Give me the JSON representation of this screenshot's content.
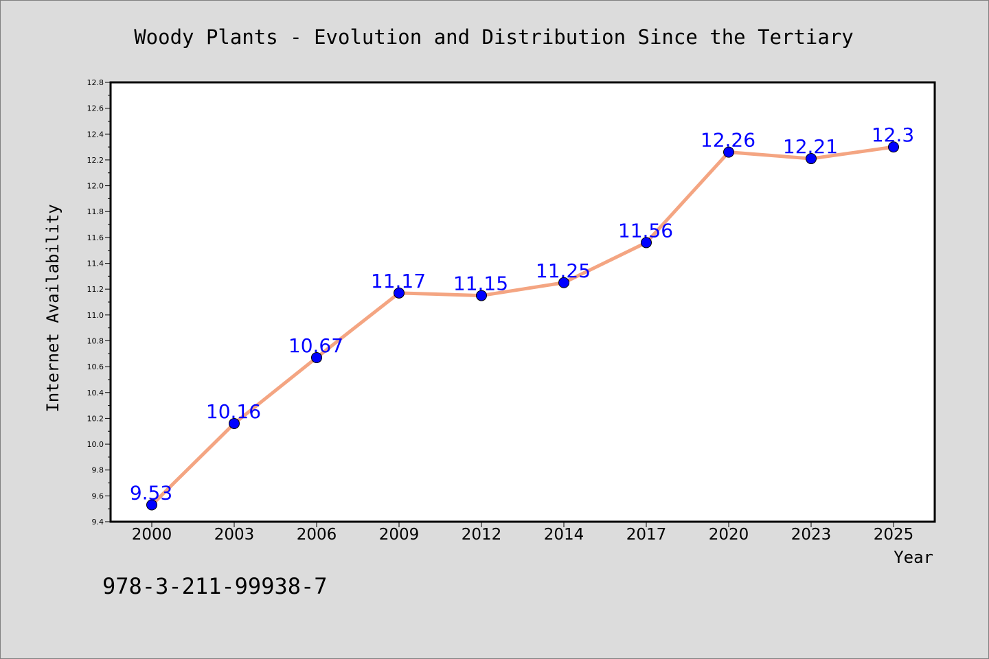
{
  "chart_data": {
    "type": "line",
    "title": "Woody Plants - Evolution and Distribution Since the Tertiary",
    "xlabel": "Year",
    "ylabel": "Internet Availability",
    "categories": [
      "2000",
      "2003",
      "2006",
      "2009",
      "2012",
      "2014",
      "2017",
      "2020",
      "2023",
      "2025"
    ],
    "series": [
      {
        "values": [
          9.53,
          10.16,
          10.67,
          11.17,
          11.15,
          11.25,
          11.56,
          12.26,
          12.21,
          12.3
        ],
        "labels": [
          "9.53",
          "10.16",
          "10.67",
          "11.17",
          "11.15",
          "11.25",
          "11.56",
          "12.26",
          "12.21",
          "12.3"
        ],
        "line_color": "#f4a582",
        "marker_color": "#0000ff",
        "label_color": "#0000ff"
      }
    ],
    "ylim": [
      9.4,
      12.8
    ],
    "yticks": [
      "9.4",
      "9.6",
      "9.8",
      "10.0",
      "10.2",
      "10.4",
      "10.6",
      "10.8",
      "11.0",
      "11.2",
      "11.4",
      "11.6",
      "11.8",
      "12.0",
      "12.2",
      "12.4",
      "12.6",
      "12.8"
    ],
    "grid": false,
    "legend": "none"
  },
  "footer_text": "978-3-211-99938-7"
}
